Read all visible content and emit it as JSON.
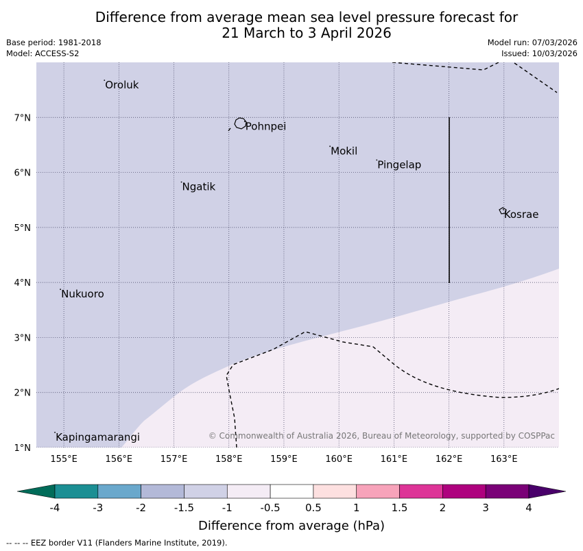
{
  "header": {
    "title_line1": "Difference from average mean sea level pressure forecast for",
    "title_line2": "21 March to 3 April 2026",
    "base_period": "Base period: 1981-2018",
    "model": "Model: ACCESS-S2",
    "model_run": "Model run: 07/03/2026",
    "issued": "Issued: 10/03/2026"
  },
  "map": {
    "lon_range": [
      154.5,
      164.0
    ],
    "lat_range": [
      1.0,
      8.0
    ],
    "lon_ticks": [
      "155°E",
      "156°E",
      "157°E",
      "158°E",
      "159°E",
      "160°E",
      "161°E",
      "162°E",
      "163°E"
    ],
    "lat_ticks": [
      "1°N",
      "2°N",
      "3°N",
      "4°N",
      "5°N",
      "6°N",
      "7°N"
    ],
    "places": [
      {
        "name": "Oroluk",
        "lon": 155.75,
        "lat": 7.6
      },
      {
        "name": "Pohnpei",
        "lon": 158.3,
        "lat": 6.85
      },
      {
        "name": "Mokil",
        "lon": 159.85,
        "lat": 6.4
      },
      {
        "name": "Pingelap",
        "lon": 160.7,
        "lat": 6.15
      },
      {
        "name": "Ngatik",
        "lon": 157.15,
        "lat": 5.75
      },
      {
        "name": "Kosrae",
        "lon": 163.0,
        "lat": 5.25
      },
      {
        "name": "Nukuoro",
        "lon": 154.95,
        "lat": 3.8
      },
      {
        "name": "Kapingamarangi",
        "lon": 154.85,
        "lat": 1.2
      }
    ],
    "copyright": "© Commonwealth of Australia 2026, Bureau of Meteorology, supported by COSPPac",
    "fill_colors": {
      "band_neg1_to_neg1_5": "#d0d1e6",
      "band_neg0_5_to_neg1": "#f4ecf5"
    }
  },
  "colorbar": {
    "title": "Difference from average (hPa)",
    "labels": [
      "-4",
      "-3",
      "-2",
      "-1.5",
      "-1",
      "-0.5",
      "0.5",
      "1",
      "1.5",
      "2",
      "3",
      "4"
    ],
    "colors": [
      "#1b8f94",
      "#6aa8cc",
      "#b3b9d8",
      "#d0d1e6",
      "#f4ecf5",
      "#ffffff",
      "#fde0e0",
      "#f7a3ba",
      "#dd3497",
      "#ae017e",
      "#7a0177"
    ],
    "extend_low_color": "#016c59",
    "extend_high_color": "#49006a"
  },
  "footnote": "--  --  -- EEZ border V11 (Flanders Marine Institute, 2019)."
}
